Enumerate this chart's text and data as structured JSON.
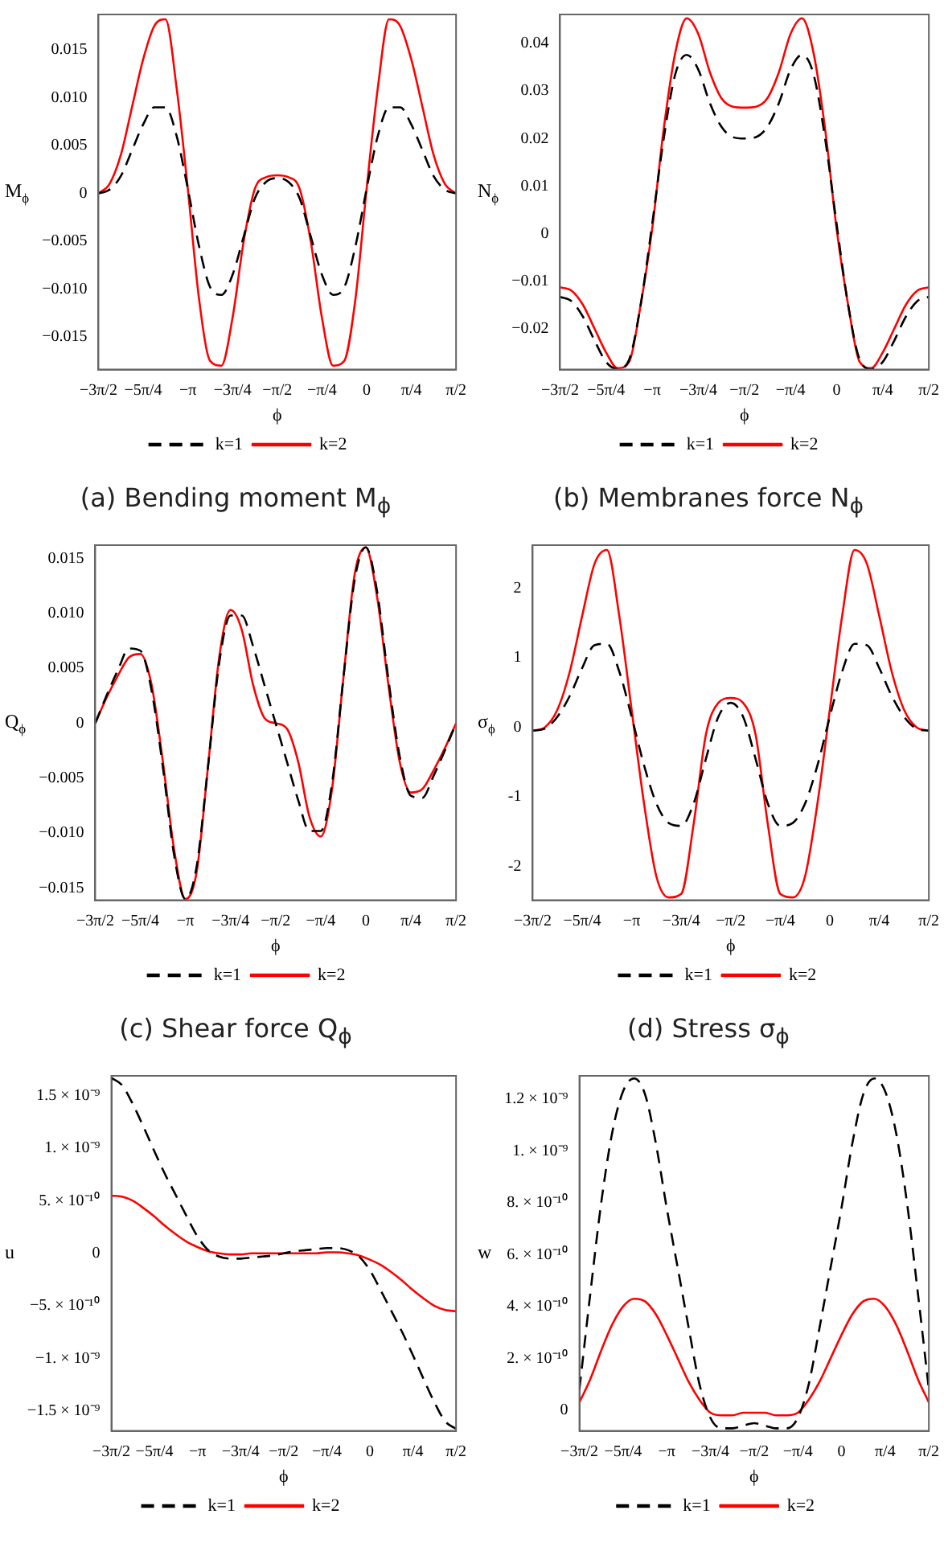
{
  "chart_data": [
    {
      "type": "line",
      "title": "(a) Bending moment M$_{ϕ}$",
      "xlabel": "ϕ",
      "ylabel": "M$_{ϕ}$",
      "legend": "bottom",
      "marker": "none",
      "x": [
        -4.712,
        -4.516,
        -4.32,
        -4.123,
        -3.927,
        -3.731,
        -3.534,
        -3.338,
        -3.142,
        -2.945,
        -2.749,
        -2.553,
        -2.356,
        -2.16,
        -1.963,
        -1.767,
        -1.571,
        -1.374,
        -1.178,
        -0.982,
        -0.785,
        -0.589,
        -0.393,
        -0.196,
        0,
        0.196,
        0.393,
        0.589,
        0.785,
        0.982,
        1.178,
        1.374,
        1.571
      ],
      "xlim": [
        -4.712,
        1.571
      ],
      "xticks": [
        {
          "value": -4.712,
          "label": "−3π/2"
        },
        {
          "value": -3.927,
          "label": "−5π/4"
        },
        {
          "value": -3.142,
          "label": "−π"
        },
        {
          "value": -2.356,
          "label": "−3π/4"
        },
        {
          "value": -1.571,
          "label": "−π/2"
        },
        {
          "value": -0.785,
          "label": "−π/4"
        },
        {
          "value": 0,
          "label": "0"
        },
        {
          "value": 0.785,
          "label": "π/4"
        },
        {
          "value": 1.571,
          "label": "π/2"
        }
      ],
      "ylim": [
        -0.0184,
        0.0187
      ],
      "yticks": [
        {
          "value": -0.015,
          "label": "−0.015"
        },
        {
          "value": -0.01,
          "label": "−0.010"
        },
        {
          "value": -0.005,
          "label": "−0.005"
        },
        0,
        {
          "value": 0.005,
          "label": "0.005"
        },
        {
          "value": 0.01,
          "label": "0.010"
        },
        {
          "value": 0.015,
          "label": "0.015"
        }
      ],
      "series": [
        {
          "name": "k=1",
          "color": "#000000",
          "line_style": "dashed",
          "values": [
            0,
            0.0004,
            0.0018,
            0.0045,
            0.0072,
            0.009,
            0.009,
            0.006,
            0.0005,
            -0.0055,
            -0.0098,
            -0.0106,
            -0.0085,
            -0.0045,
            -0.0005,
            0.0012,
            0.0016,
            0.0012,
            -0.0005,
            -0.0045,
            -0.0085,
            -0.0106,
            -0.0098,
            -0.0055,
            0.0005,
            0.006,
            0.009,
            0.009,
            0.0072,
            0.0045,
            0.0018,
            0.0004,
            0
          ]
        },
        {
          "name": "k=2",
          "color": "#ff0000",
          "line_style": "solid",
          "values": [
            0,
            0.001,
            0.004,
            0.009,
            0.014,
            0.0175,
            0.0182,
            0.011,
            0.0005,
            -0.011,
            -0.0175,
            -0.018,
            -0.013,
            -0.005,
            0.0005,
            0.0017,
            0.0019,
            0.0017,
            0.0005,
            -0.005,
            -0.013,
            -0.018,
            -0.0175,
            -0.011,
            0.0005,
            0.011,
            0.0182,
            0.0175,
            0.014,
            0.009,
            0.004,
            0.001,
            0
          ]
        }
      ]
    },
    {
      "type": "line",
      "title": "(b) Membranes force N$_{ϕ}$",
      "xlabel": "ϕ",
      "ylabel": "N$_{ϕ}$",
      "legend": "bottom",
      "marker": "none",
      "x": [
        -4.712,
        -4.516,
        -4.32,
        -4.123,
        -3.927,
        -3.731,
        -3.534,
        -3.338,
        -3.142,
        -2.945,
        -2.749,
        -2.553,
        -2.356,
        -2.16,
        -1.963,
        -1.767,
        -1.571,
        -1.374,
        -1.178,
        -0.982,
        -0.785,
        -0.589,
        -0.393,
        -0.196,
        0,
        0.196,
        0.393,
        0.589,
        0.785,
        0.982,
        1.178,
        1.374,
        1.571
      ],
      "xlim": [
        -4.712,
        1.571
      ],
      "xticks": [
        {
          "value": -4.712,
          "label": "−3π/2"
        },
        {
          "value": -3.927,
          "label": "−5π/4"
        },
        {
          "value": -3.142,
          "label": "−π"
        },
        {
          "value": -2.356,
          "label": "−3π/4"
        },
        {
          "value": -1.571,
          "label": "−π/2"
        },
        {
          "value": -0.785,
          "label": "−π/4"
        },
        {
          "value": 0,
          "label": "0"
        },
        {
          "value": 0.785,
          "label": "π/4"
        },
        {
          "value": 1.571,
          "label": "π/2"
        }
      ],
      "ylim": [
        -0.0286,
        0.0461
      ],
      "yticks": [
        {
          "value": -0.02,
          "label": "−0.02"
        },
        {
          "value": -0.01,
          "label": "−0.01"
        },
        0,
        0.01,
        0.02,
        0.03,
        0.04
      ],
      "series": [
        {
          "name": "k=1",
          "color": "#000000",
          "line_style": "dashed",
          "values": [
            -0.0133,
            -0.0142,
            -0.0175,
            -0.0225,
            -0.027,
            -0.0285,
            -0.0265,
            -0.015,
            0.002,
            0.02,
            0.0335,
            0.0376,
            0.0345,
            0.0275,
            0.0225,
            0.0203,
            0.02,
            0.0203,
            0.0225,
            0.0275,
            0.0345,
            0.0376,
            0.0335,
            0.02,
            0.002,
            -0.015,
            -0.0265,
            -0.0285,
            -0.027,
            -0.0225,
            -0.0175,
            -0.0142,
            -0.0133
          ]
        },
        {
          "name": "k=2",
          "color": "#ff0000",
          "line_style": "solid",
          "values": [
            -0.0113,
            -0.012,
            -0.015,
            -0.02,
            -0.025,
            -0.0283,
            -0.027,
            -0.015,
            0.001,
            0.022,
            0.038,
            0.0453,
            0.042,
            0.034,
            0.0285,
            0.0267,
            0.0265,
            0.0267,
            0.0285,
            0.034,
            0.042,
            0.0453,
            0.038,
            0.022,
            0.001,
            -0.015,
            -0.027,
            -0.0283,
            -0.025,
            -0.02,
            -0.015,
            -0.012,
            -0.0113
          ]
        }
      ]
    },
    {
      "type": "line",
      "title": "(c) Shear force Q$_{ϕ}$",
      "xlabel": "ϕ",
      "ylabel": "Q$_{ϕ}$",
      "legend": "bottom",
      "marker": "none",
      "x": [
        -4.712,
        -4.516,
        -4.32,
        -4.123,
        -3.927,
        -3.731,
        -3.534,
        -3.338,
        -3.142,
        -2.945,
        -2.749,
        -2.553,
        -2.356,
        -2.16,
        -1.963,
        -1.767,
        -1.571,
        -1.374,
        -1.178,
        -0.982,
        -0.785,
        -0.589,
        -0.393,
        -0.196,
        0,
        0.196,
        0.393,
        0.589,
        0.785,
        0.982,
        1.178,
        1.374,
        1.571
      ],
      "xlim": [
        -4.712,
        1.571
      ],
      "xticks": [
        {
          "value": -4.712,
          "label": "−3π/2"
        },
        {
          "value": -3.927,
          "label": "−5π/4"
        },
        {
          "value": -3.142,
          "label": "−π"
        },
        {
          "value": -2.356,
          "label": "−3π/4"
        },
        {
          "value": -1.571,
          "label": "−π/2"
        },
        {
          "value": -0.785,
          "label": "−π/4"
        },
        {
          "value": 0,
          "label": "0"
        },
        {
          "value": 0.785,
          "label": "π/4"
        },
        {
          "value": 1.571,
          "label": "π/2"
        }
      ],
      "ylim": [
        -0.0161,
        0.0162
      ],
      "yticks": [
        {
          "value": -0.015,
          "label": "−0.015"
        },
        {
          "value": -0.01,
          "label": "−0.010"
        },
        {
          "value": -0.005,
          "label": "−0.005"
        },
        0,
        {
          "value": 0.005,
          "label": "0.005"
        },
        {
          "value": 0.01,
          "label": "0.010"
        },
        {
          "value": 0.015,
          "label": "0.015"
        }
      ],
      "series": [
        {
          "name": "k=1",
          "color": "#000000",
          "line_style": "dashed",
          "values": [
            0,
            0.0025,
            0.0048,
            0.0068,
            0.0066,
            0.003,
            -0.004,
            -0.012,
            -0.016,
            -0.013,
            -0.004,
            0.0055,
            0.0098,
            0.0098,
            0.007,
            0.0035,
            0,
            -0.0035,
            -0.007,
            -0.0098,
            -0.0098,
            -0.0055,
            0.004,
            0.013,
            0.016,
            0.012,
            0.004,
            -0.003,
            -0.0066,
            -0.0068,
            -0.0048,
            -0.0025,
            0
          ]
        },
        {
          "name": "k=2",
          "color": "#ff0000",
          "line_style": "solid",
          "values": [
            0,
            0.0023,
            0.0043,
            0.006,
            0.0063,
            0.0035,
            -0.0035,
            -0.0115,
            -0.016,
            -0.0135,
            -0.004,
            0.006,
            0.0103,
            0.0085,
            0.0035,
            0.0005,
            0,
            -0.0005,
            -0.0035,
            -0.0085,
            -0.0103,
            -0.006,
            0.004,
            0.0135,
            0.016,
            0.0115,
            0.0035,
            -0.0035,
            -0.0063,
            -0.006,
            -0.0043,
            -0.0023,
            0
          ]
        }
      ]
    },
    {
      "type": "line",
      "title": "(d) Stress σ$_{ϕ}$",
      "xlabel": "ϕ",
      "ylabel": "σ$_{ϕ}$",
      "legend": "bottom",
      "marker": "none",
      "x": [
        -4.712,
        -4.516,
        -4.32,
        -4.123,
        -3.927,
        -3.731,
        -3.534,
        -3.338,
        -3.142,
        -2.945,
        -2.749,
        -2.553,
        -2.356,
        -2.16,
        -1.963,
        -1.767,
        -1.571,
        -1.374,
        -1.178,
        -0.982,
        -0.785,
        -0.589,
        -0.393,
        -0.196,
        0,
        0.196,
        0.393,
        0.589,
        0.785,
        0.982,
        1.178,
        1.374,
        1.571
      ],
      "xlim": [
        -4.712,
        1.571
      ],
      "xticks": [
        {
          "value": -4.712,
          "label": "−3π/2"
        },
        {
          "value": -3.927,
          "label": "−5π/4"
        },
        {
          "value": -3.142,
          "label": "−π"
        },
        {
          "value": -2.356,
          "label": "−3π/4"
        },
        {
          "value": -1.571,
          "label": "−π/2"
        },
        {
          "value": -0.785,
          "label": "−π/4"
        },
        {
          "value": 0,
          "label": "0"
        },
        {
          "value": 0.785,
          "label": "π/4"
        },
        {
          "value": 1.571,
          "label": "π/2"
        }
      ],
      "ylim": [
        -2.49,
        2.62
      ],
      "yticks": [
        -2,
        -1,
        0,
        1,
        2
      ],
      "series": [
        {
          "name": "k=1",
          "color": "#000000",
          "line_style": "dashed",
          "values": [
            -0.05,
            -0.02,
            0.15,
            0.45,
            0.85,
            1.18,
            1.2,
            0.8,
            0.15,
            -0.55,
            -1.1,
            -1.38,
            -1.42,
            -1.1,
            -0.45,
            0.15,
            0.35,
            0.15,
            -0.45,
            -1.1,
            -1.42,
            -1.38,
            -1.1,
            -0.55,
            0.15,
            0.8,
            1.2,
            1.18,
            0.85,
            0.45,
            0.15,
            -0.02,
            -0.05
          ]
        },
        {
          "name": "k=2",
          "color": "#ff0000",
          "line_style": "solid",
          "values": [
            -0.05,
            0.0,
            0.25,
            0.8,
            1.6,
            2.35,
            2.55,
            1.6,
            0.25,
            -1.1,
            -2.15,
            -2.45,
            -2.4,
            -1.4,
            -0.1,
            0.35,
            0.42,
            0.35,
            -0.1,
            -1.4,
            -2.4,
            -2.45,
            -2.15,
            -1.1,
            0.25,
            1.6,
            2.55,
            2.35,
            1.6,
            0.8,
            0.25,
            0.0,
            -0.05
          ]
        }
      ]
    },
    {
      "type": "line",
      "xlabel": "ϕ",
      "ylabel": "u",
      "legend": "bottom",
      "marker": "none",
      "x": [
        -4.712,
        -4.516,
        -4.32,
        -4.123,
        -3.927,
        -3.731,
        -3.534,
        -3.338,
        -3.142,
        -2.945,
        -2.749,
        -2.553,
        -2.356,
        -2.16,
        -1.963,
        -1.767,
        -1.571,
        -1.374,
        -1.178,
        -0.982,
        -0.785,
        -0.589,
        -0.393,
        -0.196,
        0,
        0.196,
        0.393,
        0.589,
        0.785,
        0.982,
        1.178,
        1.374,
        1.571
      ],
      "xlim": [
        -4.712,
        1.571
      ],
      "xticks": [
        {
          "value": -4.712,
          "label": "−3π/2"
        },
        {
          "value": -3.927,
          "label": "−5π/4"
        },
        {
          "value": -3.142,
          "label": "−π"
        },
        {
          "value": -2.356,
          "label": "−3π/4"
        },
        {
          "value": -1.571,
          "label": "−π/2"
        },
        {
          "value": -0.785,
          "label": "−π/4"
        },
        {
          "value": 0,
          "label": "0"
        },
        {
          "value": 0.785,
          "label": "π/4"
        },
        {
          "value": 1.571,
          "label": "π/2"
        }
      ],
      "ylim": [
        -1.69e-09,
        1.69e-09
      ],
      "yticks": [
        {
          "value": -1.5e-09,
          "label": "−1.5 × 10⁻⁹"
        },
        {
          "value": -1e-09,
          "label": "−1. × 10⁻⁹"
        },
        {
          "value": -5e-10,
          "label": "−5. × 10⁻¹⁰"
        },
        0,
        {
          "value": 5e-10,
          "label": "5. × 10⁻¹⁰"
        },
        {
          "value": 1e-09,
          "label": "1. × 10⁻⁹"
        },
        {
          "value": 1.5e-09,
          "label": "1.5 × 10⁻⁹"
        }
      ],
      "series": [
        {
          "name": "k=1",
          "color": "#000000",
          "line_style": "dashed",
          "values": [
            1.67e-09,
            1.6e-09,
            1.42e-09,
            1.2e-09,
            9.7e-10,
            7.5e-10,
            5.5e-10,
            3.5e-10,
            1.6e-10,
            3e-11,
            -3e-11,
            -5e-11,
            -5e-11,
            -4e-11,
            -3e-11,
            -2e-11,
            0,
            2e-11,
            3e-11,
            4e-11,
            5e-11,
            5e-11,
            3e-11,
            -3e-11,
            -1.6e-10,
            -3.5e-10,
            -5.5e-10,
            -7.5e-10,
            -9.7e-10,
            -1.2e-09,
            -1.42e-09,
            -1.6e-09,
            -1.67e-09
          ]
        },
        {
          "name": "k=2",
          "color": "#ff0000",
          "line_style": "solid",
          "values": [
            5.5e-10,
            5.4e-10,
            5e-10,
            4.3e-10,
            3.5e-10,
            2.6e-10,
            1.8e-10,
            1.1e-10,
            6e-11,
            2e-11,
            0,
            -1e-11,
            -1e-11,
            0,
            0,
            0,
            0,
            0,
            0,
            0,
            1e-11,
            1e-11,
            0,
            -2e-11,
            -6e-11,
            -1.1e-10,
            -1.8e-10,
            -2.6e-10,
            -3.5e-10,
            -4.3e-10,
            -5e-10,
            -5.4e-10,
            -5.5e-10
          ]
        }
      ]
    },
    {
      "type": "line",
      "xlabel": "ϕ",
      "ylabel": "w",
      "legend": "bottom",
      "marker": "none",
      "x": [
        -4.712,
        -4.516,
        -4.32,
        -4.123,
        -3.927,
        -3.731,
        -3.534,
        -3.338,
        -3.142,
        -2.945,
        -2.749,
        -2.553,
        -2.356,
        -2.16,
        -1.963,
        -1.767,
        -1.571,
        -1.374,
        -1.178,
        -0.982,
        -0.785,
        -0.589,
        -0.393,
        -0.196,
        0,
        0.196,
        0.393,
        0.589,
        0.785,
        0.982,
        1.178,
        1.374,
        1.571
      ],
      "xlim": [
        -4.712,
        1.571
      ],
      "xticks": [
        {
          "value": -4.712,
          "label": "−3π/2"
        },
        {
          "value": -3.927,
          "label": "−5π/4"
        },
        {
          "value": -3.142,
          "label": "−π"
        },
        {
          "value": -2.356,
          "label": "−3π/4"
        },
        {
          "value": -1.571,
          "label": "−π/2"
        },
        {
          "value": -0.785,
          "label": "−π/4"
        },
        {
          "value": 0,
          "label": "0"
        },
        {
          "value": 0.785,
          "label": "π/4"
        },
        {
          "value": 1.571,
          "label": "π/2"
        }
      ],
      "ylim": [
        -8e-11,
        1.29e-09
      ],
      "yticks": [
        0,
        {
          "value": 2e-10,
          "label": "2. × 10⁻¹⁰"
        },
        {
          "value": 4e-10,
          "label": "4. × 10⁻¹⁰"
        },
        {
          "value": 6e-10,
          "label": "6. × 10⁻¹⁰"
        },
        {
          "value": 8e-10,
          "label": "8. × 10⁻¹⁰"
        },
        {
          "value": 1e-09,
          "label": "1. × 10⁻⁹"
        },
        {
          "value": 1.2e-09,
          "label": "1.2 × 10⁻⁹"
        }
      ],
      "series": [
        {
          "name": "k=1",
          "color": "#000000",
          "line_style": "dashed",
          "values": [
            8e-11,
            4.5e-10,
            8e-10,
            1.07e-09,
            1.23e-09,
            1.28e-09,
            1.22e-09,
            1.03e-09,
            7.8e-10,
            5.5e-10,
            3.2e-10,
            1e-10,
            -3e-11,
            -7e-11,
            -7e-11,
            -6e-11,
            -5e-11,
            -6e-11,
            -7e-11,
            -7e-11,
            -3e-11,
            1e-10,
            3.2e-10,
            5.5e-10,
            7.8e-10,
            1.03e-09,
            1.22e-09,
            1.28e-09,
            1.23e-09,
            1.07e-09,
            8e-10,
            4.5e-10,
            8e-11
          ]
        },
        {
          "name": "k=2",
          "color": "#ff0000",
          "line_style": "solid",
          "values": [
            3e-11,
            1.2e-10,
            2.3e-10,
            3.3e-10,
            4e-10,
            4.3e-10,
            4.2e-10,
            3.7e-10,
            2.9e-10,
            2e-10,
            1.1e-10,
            4e-11,
            -1e-11,
            -2e-11,
            -2e-11,
            -1e-11,
            -1e-11,
            -1e-11,
            -2e-11,
            -2e-11,
            -1e-11,
            4e-11,
            1.1e-10,
            2e-10,
            2.9e-10,
            3.7e-10,
            4.2e-10,
            4.3e-10,
            4e-10,
            3.3e-10,
            2.3e-10,
            1.2e-10,
            3e-11
          ]
        }
      ]
    }
  ]
}
